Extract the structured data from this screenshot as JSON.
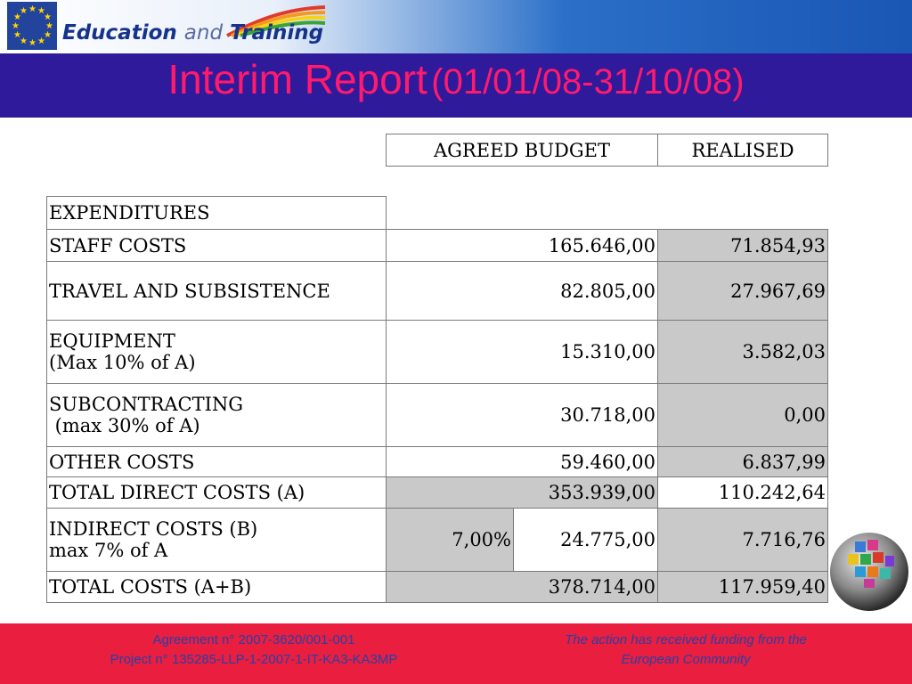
{
  "brand": {
    "word1": "Education",
    "word2": "and",
    "word3": "Training"
  },
  "title": {
    "main": "Interim Report",
    "dates": "(01/01/08-31/10/08)"
  },
  "table": {
    "headers": {
      "agreed": "AGREED BUDGET",
      "realised": "REALISED"
    },
    "section_label": "EXPENDITURES",
    "rows": [
      {
        "label1": "STAFF COSTS",
        "label2": "",
        "agreed": "165.646,00",
        "realised": "71.854,93"
      },
      {
        "label1": "TRAVEL AND SUBSISTENCE",
        "label2": "",
        "agreed": "82.805,00",
        "realised": "27.967,69"
      },
      {
        "label1": "EQUIPMENT",
        "label2": "(Max 10% of A)",
        "agreed": "15.310,00",
        "realised": "3.582,03"
      },
      {
        "label1": "SUBCONTRACTING",
        "label2": " (max 30% of A)",
        "agreed": "30.718,00",
        "realised": "0,00"
      },
      {
        "label1": "OTHER COSTS",
        "label2": "",
        "agreed": "59.460,00",
        "realised": "6.837,99"
      },
      {
        "label1": "TOTAL DIRECT COSTS (A)",
        "label2": "",
        "agreed": "353.939,00",
        "realised": "110.242,64"
      },
      {
        "label1": "INDIRECT COSTS (B)",
        "label2": "max 7% of A",
        "percent": "7,00%",
        "agreed": "24.775,00",
        "realised": "7.716,76"
      },
      {
        "label1": "TOTAL COSTS (A+B)",
        "label2": "",
        "agreed": "378.714,00",
        "realised": "117.959,40"
      }
    ]
  },
  "footer": {
    "agreement": "Agreement n° 2007-3620/001-001",
    "project": "Project n° 135285-LLP-1-2007-1-IT-KA3-KA3MP",
    "funding_line1": "The action has received funding from the",
    "funding_line2": "European Community"
  },
  "colors": {
    "header_bg": "#2e1a9a",
    "title": "#ff1a6e",
    "footer_bg": "#ea1e3e",
    "footer_text": "#2740a8",
    "realised_bg": "#c9c9c9"
  }
}
